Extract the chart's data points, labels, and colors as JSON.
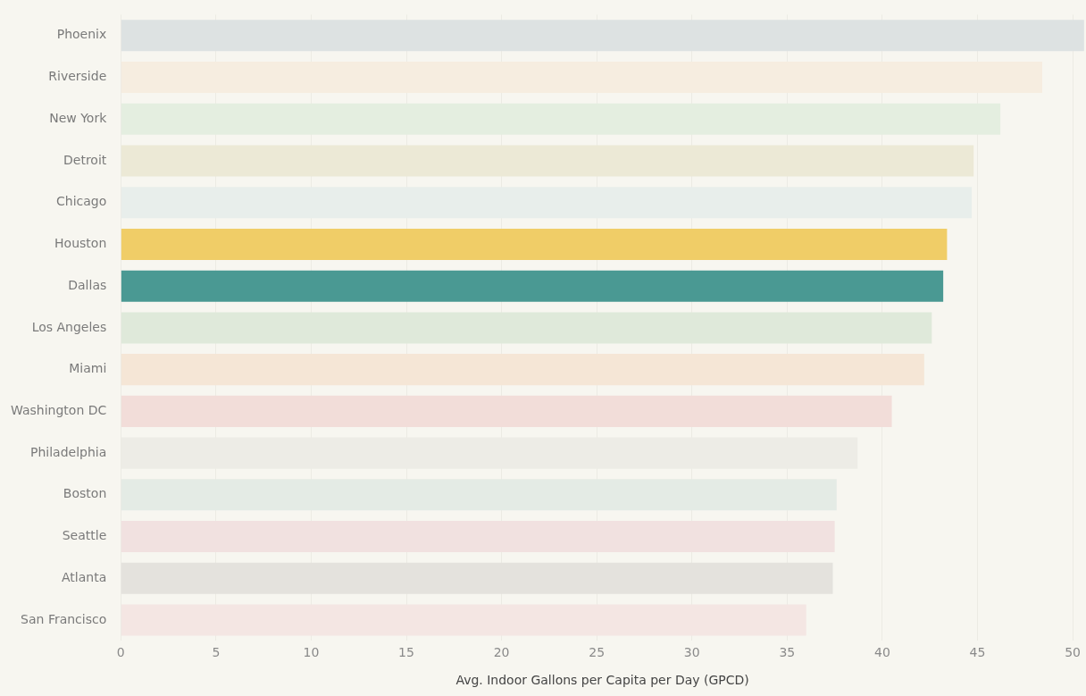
{
  "chart_data": {
    "type": "bar",
    "orientation": "horizontal",
    "xlabel": "Avg. Indoor Gallons per Capita per Day (GPCD)",
    "categories": [
      "Phoenix",
      "Riverside",
      "New York",
      "Detroit",
      "Chicago",
      "Houston",
      "Dallas",
      "Los Angeles",
      "Miami",
      "Washington DC",
      "Philadelphia",
      "Boston",
      "Seattle",
      "Atlanta",
      "San Francisco"
    ],
    "values": [
      50.6,
      48.4,
      46.2,
      44.8,
      44.7,
      43.4,
      43.2,
      42.6,
      42.2,
      40.5,
      38.7,
      37.6,
      37.5,
      37.4,
      36.0
    ],
    "colors": [
      "#dde2e2",
      "#f6ede0",
      "#e4eee0",
      "#ece9d6",
      "#e8eeeb",
      "#f0cd67",
      "#4a9993",
      "#dfe9da",
      "#f5e6d6",
      "#f2ddd9",
      "#edece6",
      "#e4ebe5",
      "#f1e1e0",
      "#e4e2dd",
      "#f4e6e3"
    ],
    "xlim": [
      0,
      50.6
    ],
    "xticks": [
      0,
      5,
      10,
      15,
      20,
      25,
      30,
      35,
      40,
      45,
      50
    ],
    "grid": "x",
    "legend": false
  }
}
